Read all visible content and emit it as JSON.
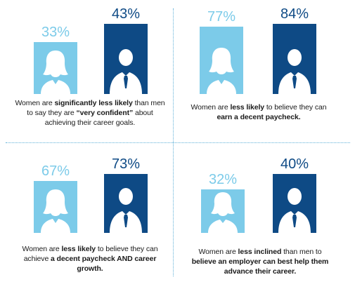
{
  "colors": {
    "women": "#7ccbe9",
    "men": "#0e4a85",
    "divider": "#5fb0d8"
  },
  "panels": [
    {
      "women_pct": "33%",
      "men_pct": "43%",
      "caption": [
        {
          "text": "Women are ",
          "bold": false
        },
        {
          "text": "significantly less likely",
          "bold": true
        },
        {
          "text": " than men to say they are ",
          "bold": false
        },
        {
          "text": "“very confident”",
          "bold": true
        },
        {
          "text": " about achieving their career goals.",
          "bold": false
        }
      ]
    },
    {
      "women_pct": "77%",
      "men_pct": "84%",
      "caption": [
        {
          "text": "Women are ",
          "bold": false
        },
        {
          "text": "less likely",
          "bold": true
        },
        {
          "text": " to believe they can ",
          "bold": false
        },
        {
          "text": "earn a decent paycheck.",
          "bold": true
        }
      ]
    },
    {
      "women_pct": "67%",
      "men_pct": "73%",
      "caption": [
        {
          "text": "Women are ",
          "bold": false
        },
        {
          "text": "less likely",
          "bold": true
        },
        {
          "text": " to believe they can achieve ",
          "bold": false
        },
        {
          "text": "a decent paycheck AND career growth.",
          "bold": true
        }
      ]
    },
    {
      "women_pct": "32%",
      "men_pct": "40%",
      "caption": [
        {
          "text": "Women are ",
          "bold": false
        },
        {
          "text": "less inclined",
          "bold": true
        },
        {
          "text": " than men to ",
          "bold": false
        },
        {
          "text": "believe an employer can best help them advance their career.",
          "bold": true
        }
      ]
    }
  ],
  "icons": {
    "women": "woman-silhouette-icon",
    "men": "man-with-tie-icon"
  }
}
